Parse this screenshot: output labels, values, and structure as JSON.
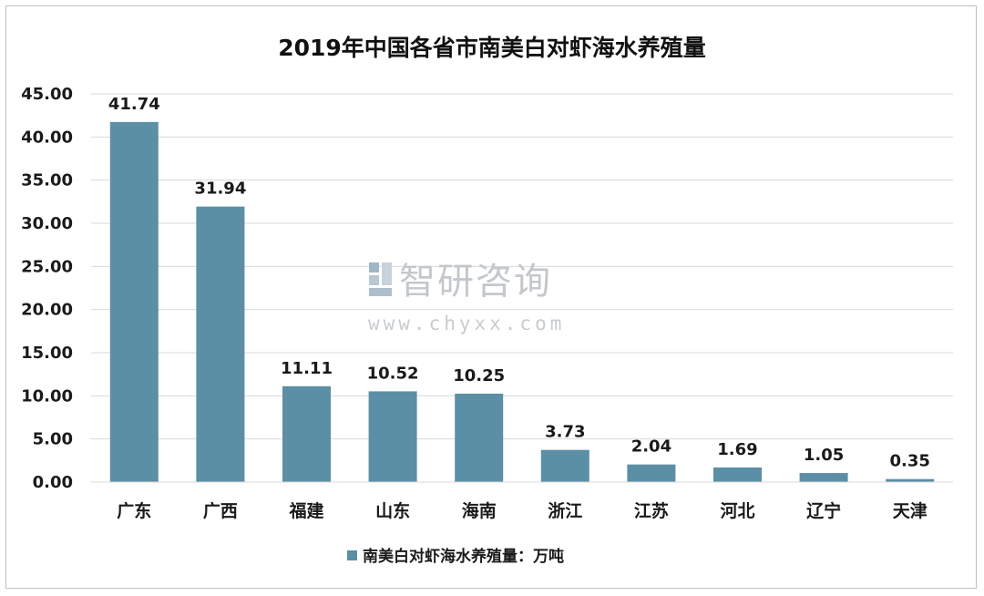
{
  "chart_data": {
    "type": "bar",
    "title": "2019年中国各省市南美白对虾海水养殖量",
    "categories": [
      "广东",
      "广西",
      "福建",
      "山东",
      "海南",
      "浙江",
      "江苏",
      "河北",
      "辽宁",
      "天津"
    ],
    "series": [
      {
        "name": "南美白对虾海水养殖量：万吨",
        "values": [
          41.74,
          31.94,
          11.11,
          10.52,
          10.25,
          3.73,
          2.04,
          1.69,
          1.05,
          0.35
        ]
      }
    ],
    "data_labels": [
      "41.74",
      "31.94",
      "11.11",
      "10.52",
      "10.25",
      "3.73",
      "2.04",
      "1.69",
      "1.05",
      "0.35"
    ],
    "y_ticks": [
      "0.00",
      "5.00",
      "10.00",
      "15.00",
      "20.00",
      "25.00",
      "30.00",
      "35.00",
      "40.00",
      "45.00"
    ],
    "ylim": [
      0,
      45
    ],
    "grid": true,
    "legend_position": "bottom",
    "bar_color": "#5b8fa5",
    "grid_color": "#d9d9d9"
  },
  "watermark": {
    "name": "智研咨询",
    "url": "www.chyxx.com",
    "color": "#c4c8cc"
  }
}
